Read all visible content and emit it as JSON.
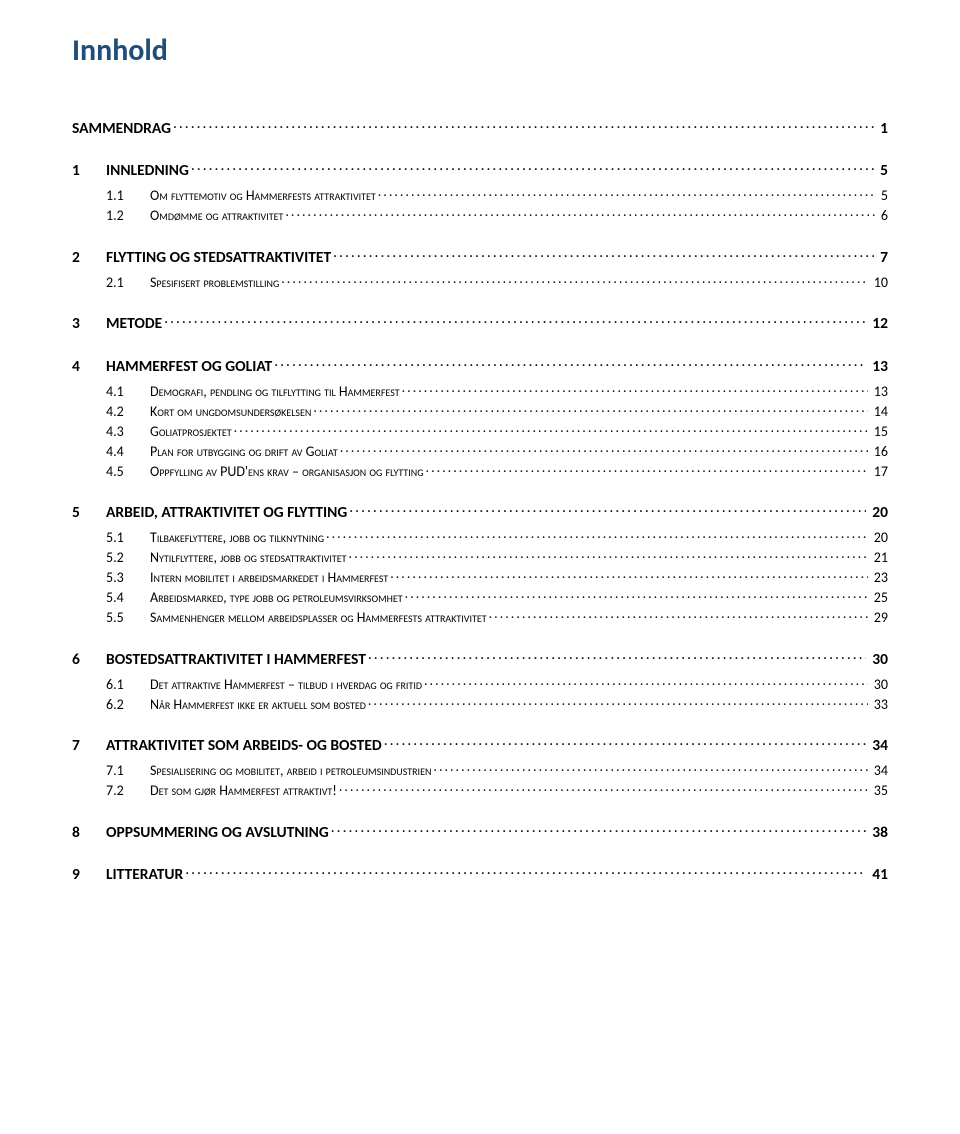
{
  "title": "Innhold",
  "colors": {
    "heading_blue": "#1f4e79",
    "text_black": "#000000",
    "background": "#ffffff"
  },
  "typography": {
    "title_fontsize_pt": 22,
    "level1_fontsize_pt": 11.5,
    "level2_fontsize_pt": 10.5,
    "font_family": "Calibri"
  },
  "toc": [
    {
      "level": 1,
      "num": "",
      "label": "SAMMENDRAG",
      "page": "1"
    },
    {
      "level": 1,
      "num": "1",
      "label": "INNLEDNING",
      "page": "5"
    },
    {
      "level": 2,
      "num": "1.1",
      "label": "Om flyttemotiv og Hammerfests attraktivitet",
      "page": "5"
    },
    {
      "level": 2,
      "num": "1.2",
      "label": "Omdømme og attraktivitet",
      "page": "6"
    },
    {
      "level": 1,
      "num": "2",
      "label": "FLYTTING OG STEDSATTRAKTIVITET",
      "page": "7"
    },
    {
      "level": 2,
      "num": "2.1",
      "label": "Spesifisert problemstilling",
      "page": "10"
    },
    {
      "level": 1,
      "num": "3",
      "label": "METODE",
      "page": "12"
    },
    {
      "level": 1,
      "num": "4",
      "label": "HAMMERFEST OG GOLIAT",
      "page": "13"
    },
    {
      "level": 2,
      "num": "4.1",
      "label": "Demografi, pendling og tilflytting til Hammerfest",
      "page": "13"
    },
    {
      "level": 2,
      "num": "4.2",
      "label": "Kort om ungdomsundersøkelsen",
      "page": "14"
    },
    {
      "level": 2,
      "num": "4.3",
      "label": "Goliatprosjektet",
      "page": "15"
    },
    {
      "level": 2,
      "num": "4.4",
      "label": "Plan for utbygging og drift av Goliat",
      "page": "16"
    },
    {
      "level": 2,
      "num": "4.5",
      "label": "Oppfylling av PUD'ens krav – organisasjon og flytting",
      "page": "17"
    },
    {
      "level": 1,
      "num": "5",
      "label": "ARBEID, ATTRAKTIVITET OG FLYTTING",
      "page": "20"
    },
    {
      "level": 2,
      "num": "5.1",
      "label": "Tilbakeflyttere, jobb og tilknytning",
      "page": "20"
    },
    {
      "level": 2,
      "num": "5.2",
      "label": "Nytilflyttere, jobb og stedsattraktivitet",
      "page": "21"
    },
    {
      "level": 2,
      "num": "5.3",
      "label": "Intern mobilitet i arbeidsmarkedet i Hammerfest",
      "page": "23"
    },
    {
      "level": 2,
      "num": "5.4",
      "label": "Arbeidsmarked, type jobb og petroleumsvirksomhet",
      "page": "25"
    },
    {
      "level": 2,
      "num": "5.5",
      "label": "Sammenhenger mellom arbeidsplasser og Hammerfests attraktivitet",
      "page": "29"
    },
    {
      "level": 1,
      "num": "6",
      "label": "BOSTEDSATTRAKTIVITET I HAMMERFEST",
      "page": "30"
    },
    {
      "level": 2,
      "num": "6.1",
      "label": "Det attraktive Hammerfest – tilbud i hverdag og fritid",
      "page": "30"
    },
    {
      "level": 2,
      "num": "6.2",
      "label": "Når Hammerfest ikke er aktuell som bosted",
      "page": "33"
    },
    {
      "level": 1,
      "num": "7",
      "label": "ATTRAKTIVITET SOM ARBEIDS- OG BOSTED",
      "page": "34"
    },
    {
      "level": 2,
      "num": "7.1",
      "label": "Spesialisering og mobilitet, arbeid i petroleumsindustrien",
      "page": "34"
    },
    {
      "level": 2,
      "num": "7.2",
      "label": "Det som gjør Hammerfest attraktivt!",
      "page": "35"
    },
    {
      "level": 1,
      "num": "8",
      "label": "OPPSUMMERING OG AVSLUTNING",
      "page": "38"
    },
    {
      "level": 1,
      "num": "9",
      "label": "LITTERATUR",
      "page": "41"
    }
  ]
}
